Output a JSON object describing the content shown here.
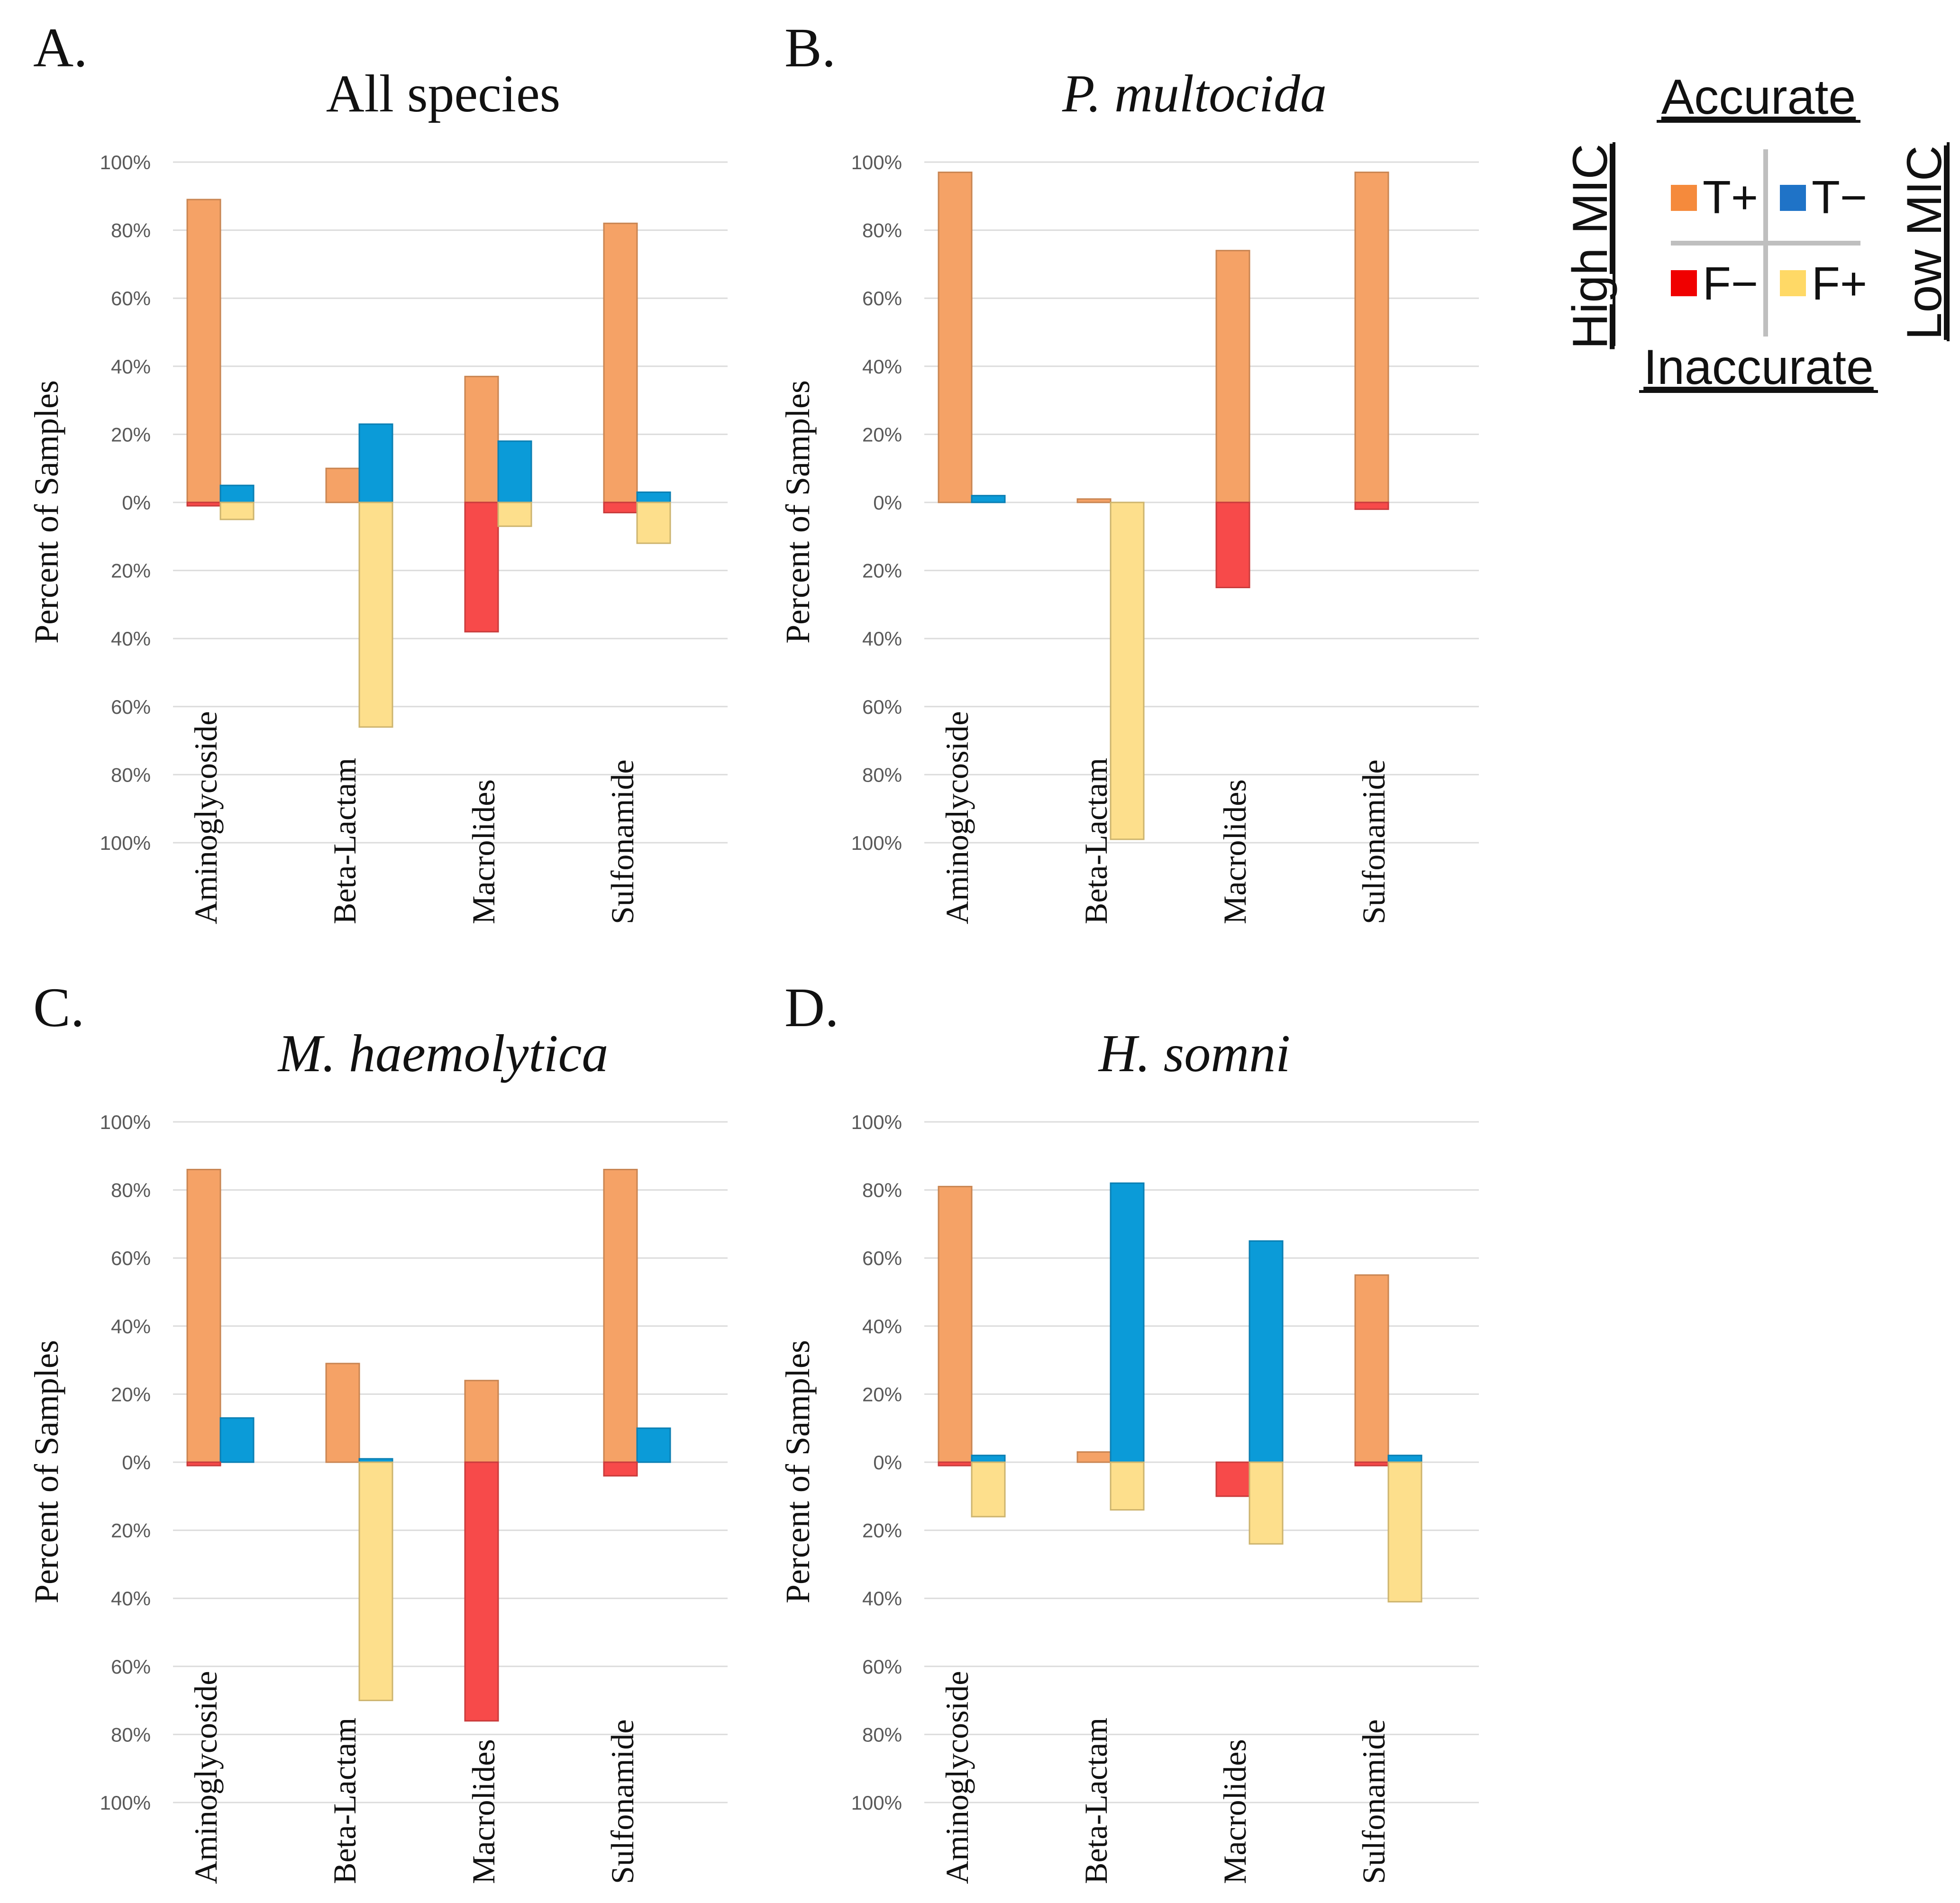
{
  "legend": {
    "top_label": "Accurate",
    "bottom_label": "Inaccurate",
    "left_label": "High MIC",
    "right_label": "Low MIC",
    "entries": [
      {
        "key": "tp",
        "label": "T+",
        "color": "#F58A3C"
      },
      {
        "key": "tn",
        "label": "T−",
        "color": "#1F73C7"
      },
      {
        "key": "fn",
        "label": "F−",
        "color": "#F00000"
      },
      {
        "key": "fp",
        "label": "F+",
        "color": "#FFD966"
      }
    ]
  },
  "bar_colors": {
    "tp": "#F5A266",
    "tn": "#0B9BD8",
    "fn": "#F74A4A",
    "fp": "#FDDF8C"
  },
  "bar_strokes": {
    "tp": "#C98552",
    "tn": "#0B7FB3",
    "fn": "#C93C3C",
    "fp": "#CDB46E"
  },
  "y_ticks_above": [
    "100%",
    "80%",
    "60%",
    "40%",
    "20%",
    "0%"
  ],
  "y_ticks_below": [
    "20%",
    "40%",
    "60%",
    "80%",
    "100%"
  ],
  "chart_data": [
    {
      "type": "bar",
      "panel_letter": "A.",
      "title": "All species",
      "title_italic": false,
      "ylabel": "Percent of Samples",
      "ylim": [
        -100,
        100
      ],
      "categories": [
        "Aminoglycoside",
        "Beta-Lactam",
        "Macrolides",
        "Sulfonamide"
      ],
      "series": [
        {
          "name": "T+",
          "key": "tp",
          "position": "left",
          "values": [
            89,
            10,
            37,
            82
          ]
        },
        {
          "name": "T−",
          "key": "tn",
          "position": "right",
          "values": [
            5,
            23,
            18,
            3
          ]
        },
        {
          "name": "F−",
          "key": "fn",
          "position": "left",
          "values": [
            -1,
            0,
            -38,
            -3
          ]
        },
        {
          "name": "F+",
          "key": "fp",
          "position": "right",
          "values": [
            -5,
            -66,
            -7,
            -12
          ]
        }
      ]
    },
    {
      "type": "bar",
      "panel_letter": "B.",
      "title": "P. multocida",
      "title_italic": true,
      "ylabel": "Percent of Samples",
      "ylim": [
        -100,
        100
      ],
      "categories": [
        "Aminoglycoside",
        "Beta-Lactam",
        "Macrolides",
        "Sulfonamide"
      ],
      "series": [
        {
          "name": "T+",
          "key": "tp",
          "position": "left",
          "values": [
            97,
            1,
            74,
            97
          ]
        },
        {
          "name": "T−",
          "key": "tn",
          "position": "right",
          "values": [
            2,
            0,
            0,
            0
          ]
        },
        {
          "name": "F−",
          "key": "fn",
          "position": "left",
          "values": [
            0,
            0,
            -25,
            -2
          ]
        },
        {
          "name": "F+",
          "key": "fp",
          "position": "right",
          "values": [
            0,
            -99,
            0,
            0
          ]
        }
      ]
    },
    {
      "type": "bar",
      "panel_letter": "C.",
      "title": "M. haemolytica",
      "title_italic": true,
      "ylabel": "Percent of Samples",
      "ylim": [
        -100,
        100
      ],
      "categories": [
        "Aminoglycoside",
        "Beta-Lactam",
        "Macrolides",
        "Sulfonamide"
      ],
      "series": [
        {
          "name": "T+",
          "key": "tp",
          "position": "left",
          "values": [
            86,
            29,
            24,
            86
          ]
        },
        {
          "name": "T−",
          "key": "tn",
          "position": "right",
          "values": [
            13,
            1,
            0,
            10
          ]
        },
        {
          "name": "F−",
          "key": "fn",
          "position": "left",
          "values": [
            -1,
            0,
            -76,
            -4
          ]
        },
        {
          "name": "F+",
          "key": "fp",
          "position": "right",
          "values": [
            0,
            -70,
            0,
            0
          ]
        }
      ]
    },
    {
      "type": "bar",
      "panel_letter": "D.",
      "title": "H. somni",
      "title_italic": true,
      "ylabel": "Percent of Samples",
      "ylim": [
        -100,
        100
      ],
      "categories": [
        "Aminoglycoside",
        "Beta-Lactam",
        "Macrolides",
        "Sulfonamide"
      ],
      "series": [
        {
          "name": "T+",
          "key": "tp",
          "position": "left",
          "values": [
            81,
            3,
            0,
            55
          ]
        },
        {
          "name": "T−",
          "key": "tn",
          "position": "right",
          "values": [
            2,
            82,
            65,
            2
          ]
        },
        {
          "name": "F−",
          "key": "fn",
          "position": "left",
          "values": [
            -1,
            0,
            -10,
            -1
          ]
        },
        {
          "name": "F+",
          "key": "fp",
          "position": "right",
          "values": [
            -16,
            -14,
            -24,
            -41
          ]
        }
      ]
    }
  ]
}
